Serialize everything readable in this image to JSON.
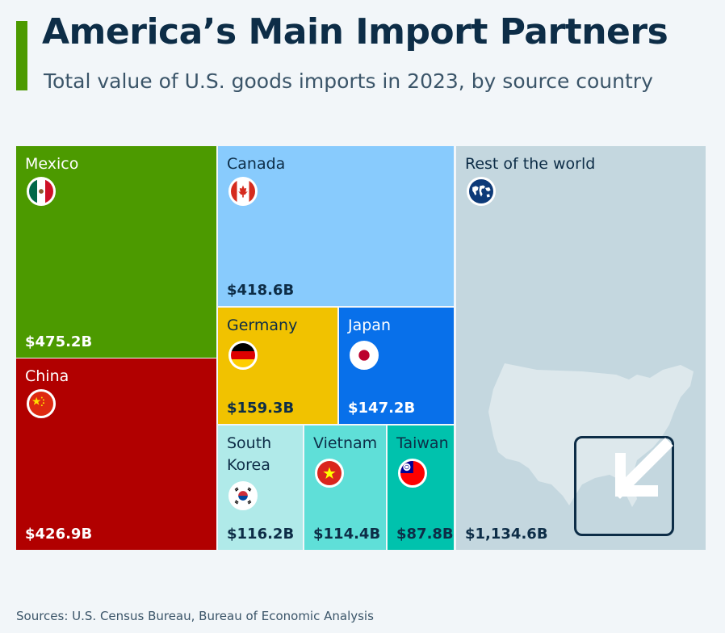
{
  "header": {
    "title": "America’s Main Import Partners",
    "subtitle": "Total value of U.S. goods imports in 2023, by source country"
  },
  "chart_data": {
    "type": "treemap",
    "title": "America’s Main Import Partners",
    "subtitle": "Total value of U.S. goods imports in 2023, by source country",
    "unit": "billion USD",
    "items": [
      {
        "name": "Mexico",
        "value_label": "$475.2B",
        "value": 475.2,
        "color": "#4c9a00",
        "text_color": "#ffffff",
        "icon": "mexico-flag-icon"
      },
      {
        "name": "China",
        "value_label": "$426.9B",
        "value": 426.9,
        "color": "#b10000",
        "text_color": "#ffffff",
        "icon": "china-flag-icon"
      },
      {
        "name": "Canada",
        "value_label": "$418.6B",
        "value": 418.6,
        "color": "#88cbfd",
        "text_color": "#0d2d47",
        "icon": "canada-flag-icon"
      },
      {
        "name": "Germany",
        "value_label": "$159.3B",
        "value": 159.3,
        "color": "#f1c200",
        "text_color": "#0d2d47",
        "icon": "germany-flag-icon"
      },
      {
        "name": "Japan",
        "value_label": "$147.2B",
        "value": 147.2,
        "color": "#0870ea",
        "text_color": "#ffffff",
        "icon": "japan-flag-icon"
      },
      {
        "name": "South Korea",
        "value_label": "$116.2B",
        "value": 116.2,
        "color": "#b0eae9",
        "text_color": "#0d2d47",
        "icon": "south-korea-flag-icon"
      },
      {
        "name": "Vietnam",
        "value_label": "$114.4B",
        "value": 114.4,
        "color": "#5fdfd8",
        "text_color": "#0d2d47",
        "icon": "vietnam-flag-icon"
      },
      {
        "name": "Taiwan",
        "value_label": "$87.8B",
        "value": 87.8,
        "color": "#00c2ad",
        "text_color": "#0d2d47",
        "icon": "taiwan-flag-icon"
      },
      {
        "name": "Rest of the world",
        "value_label": "$1,134.6B",
        "value": 1134.6,
        "color": "#c4d7df",
        "text_color": "#0d2d47",
        "icon": "globe-icon"
      }
    ]
  },
  "footer": {
    "source": "Sources: U.S. Census Bureau, Bureau of Economic Analysis"
  }
}
